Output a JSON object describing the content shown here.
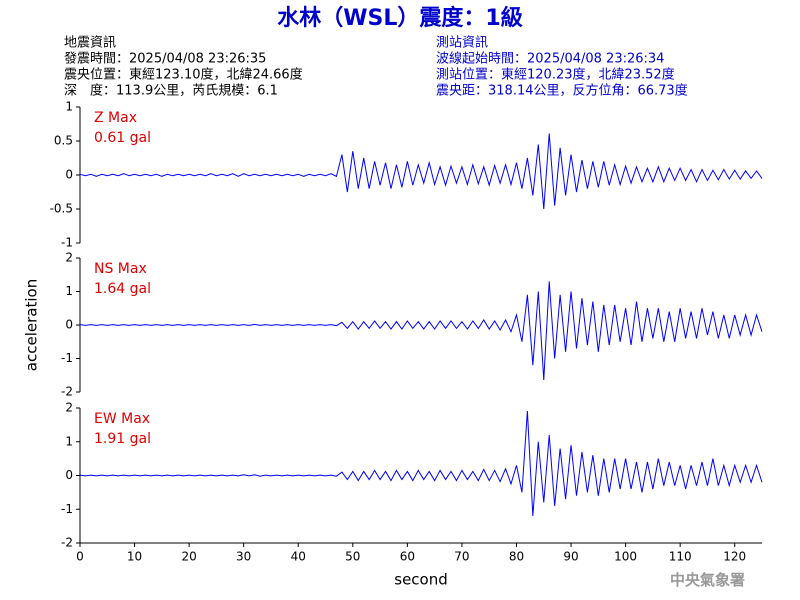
{
  "header": {
    "title": "水林（WSL）震度：1級",
    "left": [
      "地震資訊",
      "發震時間：2025/04/08 23:26:35",
      "震央位置：東經123.10度，北緯24.66度",
      "深　度：113.9公里，芮氏規模：6.1"
    ],
    "right": [
      "測站資訊",
      "波線起始時間：2025/04/08 23:26:34",
      "測站位置：東經120.23度，北緯23.52度",
      "震央距：318.14公里，反方位角：66.73度"
    ]
  },
  "footer": "中央氣象署",
  "chart_data": [
    {
      "type": "line",
      "annotations": [
        "Z Max",
        "0.61 gal"
      ],
      "xlim": [
        0,
        125
      ],
      "ylim": [
        -1,
        1
      ],
      "yticks": [
        -1,
        -0.5,
        0,
        0.5,
        1
      ],
      "x": [
        0,
        1,
        2,
        3,
        4,
        5,
        6,
        7,
        8,
        9,
        10,
        11,
        12,
        13,
        14,
        15,
        16,
        17,
        18,
        19,
        20,
        21,
        22,
        23,
        24,
        25,
        26,
        27,
        28,
        29,
        30,
        31,
        32,
        33,
        34,
        35,
        36,
        37,
        38,
        39,
        40,
        41,
        42,
        43,
        44,
        45,
        46,
        47,
        48,
        49,
        50,
        51,
        52,
        53,
        54,
        55,
        56,
        57,
        58,
        59,
        60,
        61,
        62,
        63,
        64,
        65,
        66,
        67,
        68,
        69,
        70,
        71,
        72,
        73,
        74,
        75,
        76,
        77,
        78,
        79,
        80,
        81,
        82,
        83,
        84,
        85,
        86,
        87,
        88,
        89,
        90,
        91,
        92,
        93,
        94,
        95,
        96,
        97,
        98,
        99,
        100,
        101,
        102,
        103,
        104,
        105,
        106,
        107,
        108,
        109,
        110,
        111,
        112,
        113,
        114,
        115,
        116,
        117,
        118,
        119,
        120,
        121,
        122,
        123,
        124,
        125
      ],
      "series": [
        {
          "color": "#0000ff",
          "values": [
            0.01,
            -0.01,
            0.01,
            -0.02,
            0.01,
            -0.01,
            0.01,
            -0.01,
            0.02,
            -0.01,
            0.01,
            -0.01,
            0.01,
            -0.01,
            0.01,
            -0.02,
            0.01,
            -0.01,
            0.01,
            -0.01,
            0.01,
            -0.01,
            0.01,
            -0.01,
            0.02,
            -0.01,
            0.01,
            -0.01,
            0.02,
            -0.02,
            0.02,
            -0.01,
            0.01,
            -0.01,
            0.01,
            -0.01,
            0.01,
            -0.01,
            0.01,
            -0.01,
            0.01,
            -0.02,
            0.01,
            -0.01,
            0.01,
            -0.01,
            0.02,
            -0.02,
            0.3,
            -0.25,
            0.35,
            -0.2,
            0.25,
            -0.2,
            0.2,
            -0.15,
            0.18,
            -0.2,
            0.15,
            -0.18,
            0.2,
            -0.15,
            0.15,
            -0.12,
            0.18,
            -0.14,
            0.12,
            -0.15,
            0.13,
            -0.12,
            0.12,
            -0.14,
            0.15,
            -0.13,
            0.12,
            -0.15,
            0.14,
            -0.12,
            0.15,
            -0.14,
            0.18,
            -0.2,
            0.25,
            -0.3,
            0.45,
            -0.5,
            0.61,
            -0.45,
            0.4,
            -0.3,
            0.3,
            -0.25,
            0.22,
            -0.2,
            0.2,
            -0.18,
            0.2,
            -0.15,
            0.15,
            -0.14,
            0.13,
            -0.12,
            0.12,
            -0.1,
            0.1,
            -0.1,
            0.12,
            -0.1,
            0.1,
            -0.08,
            0.1,
            -0.08,
            0.08,
            -0.1,
            0.08,
            -0.08,
            0.07,
            -0.07,
            0.08,
            -0.06,
            0.07,
            -0.06,
            0.06,
            -0.05,
            0.06,
            -0.05
          ]
        }
      ]
    },
    {
      "type": "line",
      "annotations": [
        "NS Max",
        "1.64 gal"
      ],
      "y_label": "acceleration",
      "xlim": [
        0,
        125
      ],
      "ylim": [
        -2,
        2
      ],
      "yticks": [
        -2,
        -1,
        0,
        1,
        2
      ],
      "x": [
        0,
        1,
        2,
        3,
        4,
        5,
        6,
        7,
        8,
        9,
        10,
        11,
        12,
        13,
        14,
        15,
        16,
        17,
        18,
        19,
        20,
        21,
        22,
        23,
        24,
        25,
        26,
        27,
        28,
        29,
        30,
        31,
        32,
        33,
        34,
        35,
        36,
        37,
        38,
        39,
        40,
        41,
        42,
        43,
        44,
        45,
        46,
        47,
        48,
        49,
        50,
        51,
        52,
        53,
        54,
        55,
        56,
        57,
        58,
        59,
        60,
        61,
        62,
        63,
        64,
        65,
        66,
        67,
        68,
        69,
        70,
        71,
        72,
        73,
        74,
        75,
        76,
        77,
        78,
        79,
        80,
        81,
        82,
        83,
        84,
        85,
        86,
        87,
        88,
        89,
        90,
        91,
        92,
        93,
        94,
        95,
        96,
        97,
        98,
        99,
        100,
        101,
        102,
        103,
        104,
        105,
        106,
        107,
        108,
        109,
        110,
        111,
        112,
        113,
        114,
        115,
        116,
        117,
        118,
        119,
        120,
        121,
        122,
        123,
        124,
        125
      ],
      "series": [
        {
          "color": "#0000ff",
          "values": [
            0.01,
            -0.01,
            0.01,
            -0.01,
            0.01,
            -0.01,
            0.01,
            -0.01,
            0.01,
            -0.01,
            0.01,
            -0.01,
            0.01,
            -0.01,
            0.01,
            -0.01,
            0.01,
            -0.01,
            0.01,
            -0.01,
            0.01,
            -0.01,
            0.01,
            -0.01,
            0.01,
            -0.01,
            0.01,
            -0.01,
            0.01,
            -0.01,
            0.01,
            -0.01,
            0.02,
            -0.01,
            0.01,
            -0.01,
            0.01,
            -0.01,
            0.01,
            -0.01,
            0.01,
            -0.01,
            0.01,
            -0.01,
            0.01,
            -0.01,
            0.01,
            -0.02,
            0.08,
            -0.1,
            0.1,
            -0.12,
            0.1,
            -0.1,
            0.12,
            -0.1,
            0.1,
            -0.12,
            0.1,
            -0.12,
            0.12,
            -0.1,
            0.1,
            -0.12,
            0.1,
            -0.12,
            0.12,
            -0.1,
            0.12,
            -0.1,
            0.1,
            -0.12,
            0.12,
            -0.1,
            0.15,
            -0.12,
            0.12,
            -0.15,
            0.15,
            -0.2,
            0.3,
            -0.5,
            0.9,
            -1.2,
            1.0,
            -1.64,
            1.3,
            -1.0,
            0.9,
            -0.8,
            1.0,
            -0.7,
            0.8,
            -0.6,
            0.7,
            -0.8,
            0.6,
            -0.6,
            0.6,
            -0.5,
            0.5,
            -0.6,
            0.7,
            -0.5,
            0.5,
            -0.4,
            0.5,
            -0.5,
            0.4,
            -0.5,
            0.5,
            -0.4,
            0.4,
            -0.4,
            0.5,
            -0.3,
            0.4,
            -0.4,
            0.3,
            -0.4,
            0.3,
            -0.3,
            0.3,
            -0.3,
            0.3,
            -0.2
          ]
        }
      ]
    },
    {
      "type": "line",
      "annotations": [
        "EW Max",
        "1.91 gal"
      ],
      "x_label": "second",
      "xlim": [
        0,
        125
      ],
      "xticks": [
        0,
        10,
        20,
        30,
        40,
        50,
        60,
        70,
        80,
        90,
        100,
        110,
        120
      ],
      "ylim": [
        -2,
        2
      ],
      "yticks": [
        -2,
        -1,
        0,
        1,
        2
      ],
      "x": [
        0,
        1,
        2,
        3,
        4,
        5,
        6,
        7,
        8,
        9,
        10,
        11,
        12,
        13,
        14,
        15,
        16,
        17,
        18,
        19,
        20,
        21,
        22,
        23,
        24,
        25,
        26,
        27,
        28,
        29,
        30,
        31,
        32,
        33,
        34,
        35,
        36,
        37,
        38,
        39,
        40,
        41,
        42,
        43,
        44,
        45,
        46,
        47,
        48,
        49,
        50,
        51,
        52,
        53,
        54,
        55,
        56,
        57,
        58,
        59,
        60,
        61,
        62,
        63,
        64,
        65,
        66,
        67,
        68,
        69,
        70,
        71,
        72,
        73,
        74,
        75,
        76,
        77,
        78,
        79,
        80,
        81,
        82,
        83,
        84,
        85,
        86,
        87,
        88,
        89,
        90,
        91,
        92,
        93,
        94,
        95,
        96,
        97,
        98,
        99,
        100,
        101,
        102,
        103,
        104,
        105,
        106,
        107,
        108,
        109,
        110,
        111,
        112,
        113,
        114,
        115,
        116,
        117,
        118,
        119,
        120,
        121,
        122,
        123,
        124,
        125
      ],
      "series": [
        {
          "color": "#0000ff",
          "values": [
            0.01,
            -0.01,
            0.01,
            -0.01,
            0.01,
            -0.01,
            0.01,
            -0.01,
            0.01,
            -0.01,
            0.01,
            -0.01,
            0.01,
            -0.01,
            0.01,
            -0.01,
            0.01,
            -0.01,
            0.01,
            -0.01,
            0.01,
            -0.01,
            0.01,
            -0.01,
            0.01,
            -0.01,
            0.01,
            -0.01,
            0.01,
            -0.01,
            0.02,
            -0.01,
            0.02,
            -0.02,
            0.01,
            -0.01,
            0.01,
            -0.01,
            0.01,
            -0.01,
            0.01,
            -0.01,
            0.01,
            -0.01,
            0.01,
            -0.01,
            0.01,
            -0.02,
            0.1,
            -0.12,
            0.12,
            -0.15,
            0.12,
            -0.12,
            0.15,
            -0.12,
            0.12,
            -0.15,
            0.15,
            -0.12,
            0.12,
            -0.15,
            0.15,
            -0.12,
            0.12,
            -0.15,
            0.15,
            -0.12,
            0.12,
            -0.15,
            0.15,
            -0.12,
            0.12,
            -0.15,
            0.18,
            -0.15,
            0.15,
            -0.18,
            0.2,
            -0.25,
            0.3,
            -0.5,
            1.91,
            -1.2,
            1.0,
            -0.8,
            1.2,
            -0.9,
            0.8,
            -0.7,
            0.9,
            -0.6,
            0.7,
            -0.5,
            0.6,
            -0.6,
            0.5,
            -0.5,
            0.5,
            -0.4,
            0.5,
            -0.4,
            0.4,
            -0.5,
            0.4,
            -0.4,
            0.5,
            -0.3,
            0.4,
            -0.3,
            0.3,
            -0.4,
            0.3,
            -0.3,
            0.4,
            -0.3,
            0.5,
            -0.3,
            0.3,
            -0.3,
            0.3,
            -0.2,
            0.3,
            -0.2,
            0.3,
            -0.2
          ]
        }
      ]
    }
  ]
}
